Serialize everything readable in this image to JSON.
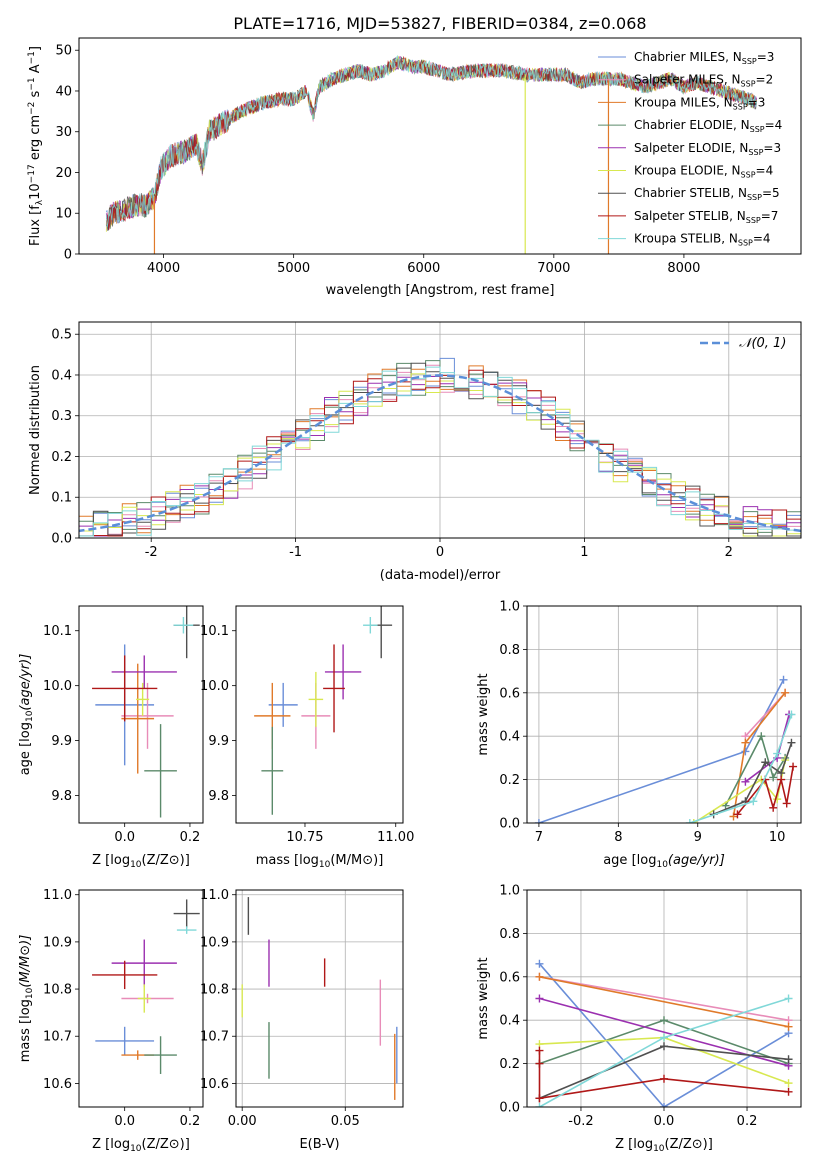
{
  "figure_title": "PLATE=1716, MJD=53827, FIBERID=0384, z=0.068",
  "colors": {
    "chabrier_miles": "#6a8ed8",
    "salpeter_miles": "#e88cb8",
    "kroupa_miles": "#e07a2a",
    "chabrier_elodie": "#5b8a6a",
    "salpeter_elodie": "#9b30b0",
    "kroupa_elodie": "#d8e850",
    "chabrier_stelib": "#505050",
    "salpeter_stelib": "#b01818",
    "kroupa_stelib": "#80d8d8",
    "normal_curve": "#5b8fd8"
  },
  "chart_data": [
    {
      "id": "spectrum",
      "type": "line",
      "title": "",
      "xlabel": "wavelength [Angstrom, rest frame]",
      "ylabel": "Flux [f",
      "xlim": [
        3350,
        8900
      ],
      "ylim": [
        0,
        53
      ],
      "xticks": [
        4000,
        5000,
        6000,
        7000,
        8000
      ],
      "yticks": [
        0,
        10,
        20,
        30,
        40,
        50
      ],
      "legend": "top-right",
      "envelope": {
        "x": [
          3560,
          3620,
          3700,
          3800,
          3870,
          3930,
          3980,
          4050,
          4150,
          4250,
          4300,
          4350,
          4450,
          4600,
          4750,
          4900,
          5000,
          5100,
          5150,
          5200,
          5300,
          5400,
          5500,
          5600,
          5700,
          5800,
          5900,
          6000,
          6200,
          6400,
          6600,
          6800,
          7000,
          7100,
          7200,
          7300,
          7400,
          7500,
          7600,
          7700,
          7800,
          7900,
          8000,
          8100,
          8200,
          8300,
          8400,
          8500,
          8560
        ],
        "y": [
          8,
          10,
          11,
          12,
          12,
          14,
          21,
          24,
          25,
          27,
          22,
          30,
          32,
          35,
          37,
          38,
          38,
          40,
          34,
          41,
          43,
          44,
          45,
          44,
          45,
          47,
          46,
          46,
          44,
          45,
          45,
          44,
          44,
          44,
          42,
          43,
          43,
          43,
          42,
          41,
          42,
          43,
          41,
          42,
          41,
          40,
          39,
          38,
          37
        ]
      },
      "series": [
        {
          "name": "Chabrier MILES, N",
          "nssp": "=3"
        },
        {
          "name": "Salpeter MILES, N",
          "nssp": "=2"
        },
        {
          "name": "Kroupa MILES, N",
          "nssp": "=3"
        },
        {
          "name": "Chabrier ELODIE, N",
          "nssp": "=4"
        },
        {
          "name": "Salpeter ELODIE, N",
          "nssp": "=3"
        },
        {
          "name": "Kroupa ELODIE, N",
          "nssp": "=4"
        },
        {
          "name": "Chabrier STELIB, N",
          "nssp": "=5"
        },
        {
          "name": "Salpeter STELIB, N",
          "nssp": "=7"
        },
        {
          "name": "Kroupa STELIB, N",
          "nssp": "=4"
        }
      ],
      "drops": [
        {
          "x": 3930,
          "y": 0
        },
        {
          "x": 6780,
          "y": 0
        },
        {
          "x": 7420,
          "y": 0
        }
      ]
    },
    {
      "id": "residuals",
      "type": "histogram",
      "xlabel": "(data-model)/error",
      "ylabel": "Normed distribution",
      "xlim": [
        -2.5,
        2.5
      ],
      "ylim": [
        0,
        0.53
      ],
      "xticks": [
        -2,
        -1,
        0,
        1,
        2
      ],
      "yticks": [
        0.0,
        0.1,
        0.2,
        0.3,
        0.4,
        0.5
      ],
      "grid": true,
      "legend": "top-right",
      "normal_label": "𝒩(0, 1)",
      "bin_width": 0.1
    },
    {
      "id": "age_vs_z",
      "type": "scatter",
      "xlabel": "Z [log",
      "ylabel": "age  [log",
      "xlim": [
        -0.14,
        0.24
      ],
      "ylim": [
        9.75,
        10.145
      ],
      "xticks": [
        0.0,
        0.2
      ],
      "yticks": [
        9.8,
        9.9,
        10.0,
        10.1
      ],
      "points": [
        {
          "series": "chabrier_miles",
          "x": 0.0,
          "y": 9.965,
          "xerr": 0.09,
          "yerr": 0.11
        },
        {
          "series": "salpeter_miles",
          "x": 0.07,
          "y": 9.945,
          "xerr": 0.08,
          "yerr": 0.06
        },
        {
          "series": "kroupa_miles",
          "x": 0.04,
          "y": 9.94,
          "xerr": 0.05,
          "yerr": 0.1
        },
        {
          "series": "chabrier_elodie",
          "x": 0.11,
          "y": 9.845,
          "xerr": 0.05,
          "yerr": 0.085
        },
        {
          "series": "salpeter_elodie",
          "x": 0.06,
          "y": 10.025,
          "xerr": 0.1,
          "yerr": 0.03
        },
        {
          "series": "kroupa_elodie",
          "x": 0.055,
          "y": 9.975,
          "xerr": 0.02,
          "yerr": 0.03
        },
        {
          "series": "chabrier_stelib",
          "x": 0.19,
          "y": 10.11,
          "xerr": 0.04,
          "yerr": 0.06
        },
        {
          "series": "salpeter_stelib",
          "x": 0.0,
          "y": 9.995,
          "xerr": 0.1,
          "yerr": 0.06
        },
        {
          "series": "kroupa_stelib",
          "x": 0.18,
          "y": 10.11,
          "xerr": 0.03,
          "yerr": 0.015
        }
      ]
    },
    {
      "id": "age_vs_mass",
      "type": "scatter",
      "xlabel": "mass [log",
      "ylabel": "",
      "xlim": [
        10.56,
        11.02
      ],
      "ylim": [
        9.75,
        10.145
      ],
      "xticks": [
        10.75,
        11.0
      ],
      "yticks": [
        9.8,
        9.9,
        10.0,
        10.1
      ],
      "points": [
        {
          "series": "chabrier_miles",
          "x": 10.69,
          "y": 9.965,
          "xerr": 0.04,
          "yerr": 0.04
        },
        {
          "series": "salpeter_miles",
          "x": 10.78,
          "y": 9.945,
          "xerr": 0.04,
          "yerr": 0.06
        },
        {
          "series": "kroupa_miles",
          "x": 10.66,
          "y": 9.945,
          "xerr": 0.05,
          "yerr": 0.06
        },
        {
          "series": "chabrier_elodie",
          "x": 10.66,
          "y": 9.845,
          "xerr": 0.03,
          "yerr": 0.08
        },
        {
          "series": "salpeter_elodie",
          "x": 10.855,
          "y": 10.025,
          "xerr": 0.05,
          "yerr": 0.05
        },
        {
          "series": "kroupa_elodie",
          "x": 10.78,
          "y": 9.975,
          "xerr": 0.02,
          "yerr": 0.05
        },
        {
          "series": "chabrier_stelib",
          "x": 10.96,
          "y": 10.11,
          "xerr": 0.03,
          "yerr": 0.06
        },
        {
          "series": "salpeter_stelib",
          "x": 10.83,
          "y": 9.995,
          "xerr": 0.03,
          "yerr": 0.08
        },
        {
          "series": "kroupa_stelib",
          "x": 10.93,
          "y": 10.11,
          "xerr": 0.02,
          "yerr": 0.015
        }
      ]
    },
    {
      "id": "weight_vs_age",
      "type": "line",
      "xlabel": "age  [log",
      "ylabel": "mass weight",
      "xlim": [
        6.85,
        10.3
      ],
      "ylim": [
        0,
        1.0
      ],
      "xticks": [
        7,
        8,
        9,
        10
      ],
      "yticks": [
        0.0,
        0.2,
        0.4,
        0.6,
        0.8,
        1.0
      ],
      "grid": true,
      "series": [
        {
          "key": "chabrier_miles",
          "x": [
            7.0,
            9.6,
            10.08
          ],
          "y": [
            0.0,
            0.33,
            0.66
          ]
        },
        {
          "key": "salpeter_miles",
          "x": [
            9.6,
            10.1
          ],
          "y": [
            0.4,
            0.6
          ]
        },
        {
          "key": "kroupa_miles",
          "x": [
            9.45,
            9.6,
            10.1
          ],
          "y": [
            0.03,
            0.37,
            0.6
          ]
        },
        {
          "key": "chabrier_elodie",
          "x": [
            9.35,
            9.8,
            9.95,
            10.1
          ],
          "y": [
            0.08,
            0.4,
            0.21,
            0.3
          ]
        },
        {
          "key": "salpeter_elodie",
          "x": [
            9.6,
            10.0,
            10.15
          ],
          "y": [
            0.19,
            0.3,
            0.5
          ]
        },
        {
          "key": "kroupa_elodie",
          "x": [
            8.95,
            9.8,
            10.0,
            10.1
          ],
          "y": [
            0.0,
            0.2,
            0.11,
            0.29
          ]
        },
        {
          "key": "chabrier_stelib",
          "x": [
            9.2,
            9.6,
            9.85,
            10.05,
            10.18
          ],
          "y": [
            0.04,
            0.1,
            0.28,
            0.23,
            0.37
          ]
        },
        {
          "key": "salpeter_stelib",
          "x": [
            9.5,
            9.85,
            9.95,
            10.05,
            10.12,
            10.2
          ],
          "y": [
            0.04,
            0.2,
            0.07,
            0.2,
            0.09,
            0.26
          ]
        },
        {
          "key": "kroupa_stelib",
          "x": [
            8.9,
            9.7,
            10.0,
            10.18
          ],
          "y": [
            0.0,
            0.1,
            0.32,
            0.5
          ]
        }
      ]
    },
    {
      "id": "mass_vs_z",
      "type": "scatter",
      "xlabel": "Z [log",
      "ylabel": "mass [log",
      "xlim": [
        -0.14,
        0.24
      ],
      "ylim": [
        10.55,
        11.01
      ],
      "xticks": [
        0.0,
        0.2
      ],
      "yticks": [
        10.6,
        10.7,
        10.8,
        10.9,
        11.0
      ],
      "points": [
        {
          "series": "chabrier_miles",
          "x": 0.0,
          "y": 10.69,
          "xerr": 0.09,
          "yerr": 0.03
        },
        {
          "series": "salpeter_miles",
          "x": 0.07,
          "y": 10.78,
          "xerr": 0.08,
          "yerr": 0.01
        },
        {
          "series": "kroupa_miles",
          "x": 0.04,
          "y": 10.66,
          "xerr": 0.05,
          "yerr": 0.01
        },
        {
          "series": "chabrier_elodie",
          "x": 0.11,
          "y": 10.66,
          "xerr": 0.05,
          "yerr": 0.04
        },
        {
          "series": "salpeter_elodie",
          "x": 0.06,
          "y": 10.855,
          "xerr": 0.1,
          "yerr": 0.05
        },
        {
          "series": "kroupa_elodie",
          "x": 0.06,
          "y": 10.78,
          "xerr": 0.02,
          "yerr": 0.03
        },
        {
          "series": "chabrier_stelib",
          "x": 0.19,
          "y": 10.96,
          "xerr": 0.04,
          "yerr": 0.03
        },
        {
          "series": "salpeter_stelib",
          "x": 0.0,
          "y": 10.83,
          "xerr": 0.1,
          "yerr": 0.03
        },
        {
          "series": "kroupa_stelib",
          "x": 0.19,
          "y": 10.925,
          "xerr": 0.03,
          "yerr": 0.008
        }
      ]
    },
    {
      "id": "mass_vs_ebv",
      "type": "scatter",
      "xlabel": "E(B-V)",
      "ylabel": "",
      "xlim": [
        -0.003,
        0.078
      ],
      "ylim": [
        10.55,
        11.01
      ],
      "xticks": [
        0.0,
        0.05
      ],
      "yticks": [
        10.6,
        10.7,
        10.8,
        10.9,
        11.0
      ],
      "grid": true,
      "points": [
        {
          "series": "chabrier_miles",
          "x": 0.075,
          "y": 10.66,
          "xerr": 0,
          "yerr": 0.06
        },
        {
          "series": "salpeter_miles",
          "x": 0.067,
          "y": 10.75,
          "xerr": 0,
          "yerr": 0.07
        },
        {
          "series": "kroupa_miles",
          "x": 0.074,
          "y": 10.635,
          "xerr": 0,
          "yerr": 0.07
        },
        {
          "series": "chabrier_elodie",
          "x": 0.013,
          "y": 10.67,
          "xerr": 0,
          "yerr": 0.06
        },
        {
          "series": "salpeter_elodie",
          "x": 0.013,
          "y": 10.855,
          "xerr": 0,
          "yerr": 0.05
        },
        {
          "series": "kroupa_elodie",
          "x": 0.0,
          "y": 10.775,
          "xerr": 0,
          "yerr": 0.035
        },
        {
          "series": "chabrier_stelib",
          "x": 0.003,
          "y": 10.955,
          "xerr": 0,
          "yerr": 0.04
        },
        {
          "series": "salpeter_stelib",
          "x": 0.04,
          "y": 10.835,
          "xerr": 0,
          "yerr": 0.03
        },
        {
          "series": "kroupa_stelib",
          "x": 0.0,
          "y": 10.9,
          "xerr": 0,
          "yerr": 0.0
        }
      ]
    },
    {
      "id": "weight_vs_z",
      "type": "line",
      "xlabel": "Z [log",
      "ylabel": "mass weight",
      "xlim": [
        -0.33,
        0.33
      ],
      "ylim": [
        0,
        1.0
      ],
      "xticks": [
        -0.2,
        0.0,
        0.2
      ],
      "yticks": [
        0.0,
        0.2,
        0.4,
        0.6,
        0.8,
        1.0
      ],
      "grid": true,
      "series": [
        {
          "key": "chabrier_miles",
          "x": [
            -0.3,
            0.0,
            0.3
          ],
          "y": [
            0.66,
            0.0,
            0.34
          ]
        },
        {
          "key": "salpeter_miles",
          "x": [
            -0.3,
            0.3
          ],
          "y": [
            0.6,
            0.4
          ]
        },
        {
          "key": "kroupa_miles",
          "x": [
            -0.3,
            0.3
          ],
          "y": [
            0.6,
            0.37
          ]
        },
        {
          "key": "chabrier_elodie",
          "x": [
            -0.3,
            0.0,
            0.3
          ],
          "y": [
            0.2,
            0.4,
            0.2
          ]
        },
        {
          "key": "salpeter_elodie",
          "x": [
            -0.3,
            0.3
          ],
          "y": [
            0.5,
            0.19
          ]
        },
        {
          "key": "kroupa_elodie",
          "x": [
            -0.3,
            0.0,
            0.3
          ],
          "y": [
            0.29,
            0.32,
            0.11
          ]
        },
        {
          "key": "chabrier_stelib",
          "x": [
            -0.3,
            0.0,
            0.3
          ],
          "y": [
            0.04,
            0.28,
            0.22
          ]
        },
        {
          "key": "salpeter_stelib",
          "x": [
            -0.3,
            -0.3,
            -0.3,
            0.0,
            0.3
          ],
          "y": [
            0.26,
            0.2,
            0.04,
            0.13,
            0.07
          ]
        },
        {
          "key": "kroupa_stelib",
          "x": [
            -0.3,
            0.0,
            0.3
          ],
          "y": [
            0.0,
            0.32,
            0.5
          ]
        }
      ]
    }
  ]
}
